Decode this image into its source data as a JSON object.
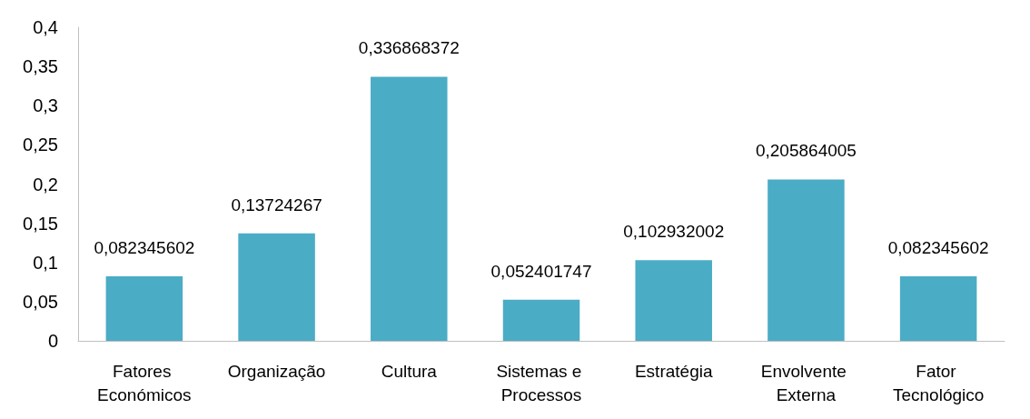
{
  "chart_data": {
    "type": "bar",
    "categories": [
      "Fatores Económicos",
      "Organização",
      "Cultura",
      "Sistemas e Processos",
      "Estratégia",
      "Envolvente Externa",
      "Fator Tecnológico"
    ],
    "values": [
      0.082345602,
      0.13724267,
      0.336868372,
      0.052401747,
      0.102932002,
      0.205864005,
      0.082345602
    ],
    "value_labels": [
      "0,082345602",
      "0,13724267",
      "0,336868372",
      "0,052401747",
      "0,102932002",
      "0,205864005",
      "0,082345602"
    ],
    "color": "#4bacc6",
    "ylim": [
      0,
      0.4
    ],
    "yticks": [
      0,
      {
        "value": 0.05,
        "label": "0,05"
      },
      {
        "value": 0.1,
        "label": "0,1"
      },
      {
        "value": 0.15,
        "label": "0,15"
      },
      {
        "value": 0.2,
        "label": "0,2"
      },
      {
        "value": 0.25,
        "label": "0,25"
      },
      {
        "value": 0.3,
        "label": "0,3"
      },
      {
        "value": 0.35,
        "label": "0,35"
      },
      {
        "value": 0.4,
        "label": "0,4"
      }
    ],
    "grid": false
  }
}
